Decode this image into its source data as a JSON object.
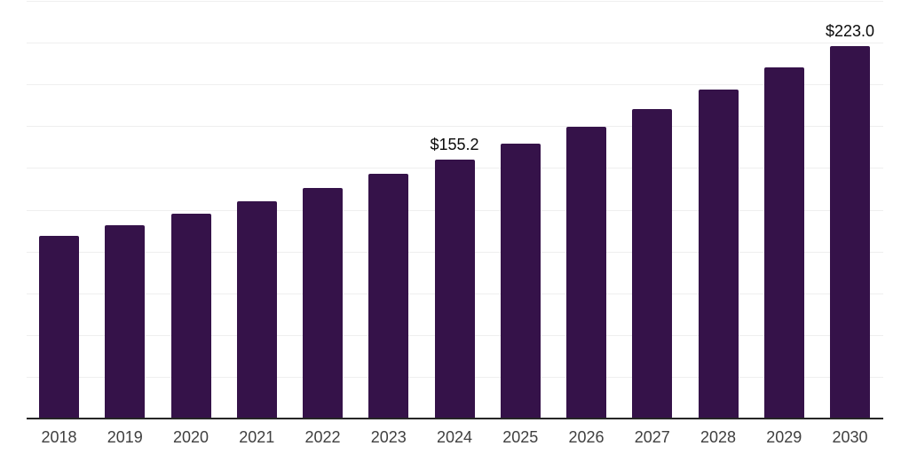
{
  "chart_data": {
    "type": "bar",
    "title": "",
    "xlabel": "",
    "ylabel": "",
    "categories": [
      "2018",
      "2019",
      "2020",
      "2021",
      "2022",
      "2023",
      "2024",
      "2025",
      "2026",
      "2027",
      "2028",
      "2029",
      "2030"
    ],
    "values": [
      109.6,
      115.9,
      122.8,
      130.2,
      137.9,
      146.6,
      155.2,
      164.6,
      174.5,
      185.4,
      196.9,
      210.0,
      223.0
    ],
    "values_note": "Only 2024 and 2030 show printed data labels; remaining values estimated from bar heights against gridlines",
    "data_labels": {
      "2024": "$155.2",
      "2030": "$223.0"
    },
    "ylim": [
      0,
      250
    ],
    "gridline_step": 25,
    "grid": true,
    "legend": false,
    "y_axis_tick_labels_visible": false,
    "bar_color": "#351249",
    "axis_line_color": "#262626",
    "gridline_color": "#efefef",
    "tick_label_color": "#404040",
    "data_label_color": "#0a0a0a",
    "background_color": "#ffffff"
  }
}
